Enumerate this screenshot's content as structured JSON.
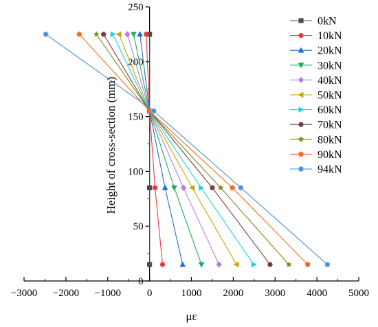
{
  "chart_data": {
    "type": "line",
    "title": "",
    "xlabel": "με",
    "ylabel": "Height of cross-section (mm)",
    "xlim": [
      -3000,
      5000
    ],
    "ylim": [
      0,
      250
    ],
    "xticks": [
      -3000,
      -2000,
      -1000,
      0,
      1000,
      2000,
      3000,
      4000,
      5000
    ],
    "yticks": [
      0,
      50,
      100,
      150,
      200,
      250
    ],
    "xtick_labels": [
      "−3000",
      "−2000",
      "−1000",
      "0",
      "1000",
      "2000",
      "3000",
      "4000",
      "5000"
    ],
    "ytick_labels": [
      "0",
      "50",
      "100",
      "150",
      "200",
      "250"
    ],
    "grid": false,
    "legend_position": "top-right",
    "series": [
      {
        "name": "0kN",
        "color": "#4d4d4d",
        "marker": "square",
        "points": [
          [
            0,
            225
          ],
          [
            0,
            155
          ],
          [
            0,
            85
          ],
          [
            0,
            15
          ]
        ]
      },
      {
        "name": "10kN",
        "color": "#f0353a",
        "marker": "circle",
        "points": [
          [
            -80,
            225
          ],
          [
            0,
            155
          ],
          [
            130,
            85
          ],
          [
            310,
            15
          ]
        ]
      },
      {
        "name": "20kN",
        "color": "#1f6fd1",
        "marker": "triangle-up",
        "points": [
          [
            -230,
            225
          ],
          [
            0,
            155
          ],
          [
            370,
            85
          ],
          [
            790,
            15
          ]
        ]
      },
      {
        "name": "30kN",
        "color": "#1cab62",
        "marker": "triangle-down",
        "points": [
          [
            -380,
            225
          ],
          [
            0,
            155
          ],
          [
            590,
            85
          ],
          [
            1240,
            15
          ]
        ]
      },
      {
        "name": "40kN",
        "color": "#b07ee8",
        "marker": "diamond",
        "points": [
          [
            -530,
            225
          ],
          [
            0,
            155
          ],
          [
            810,
            85
          ],
          [
            1660,
            15
          ]
        ]
      },
      {
        "name": "50kN",
        "color": "#c9a406",
        "marker": "triangle-left",
        "points": [
          [
            -730,
            225
          ],
          [
            0,
            155
          ],
          [
            1020,
            85
          ],
          [
            2080,
            15
          ]
        ]
      },
      {
        "name": "60kN",
        "color": "#17d6e0",
        "marker": "triangle-right",
        "points": [
          [
            -880,
            225
          ],
          [
            0,
            155
          ],
          [
            1230,
            85
          ],
          [
            2490,
            15
          ]
        ]
      },
      {
        "name": "70kN",
        "color": "#7a3d3d",
        "marker": "hexagon",
        "points": [
          [
            -1100,
            225
          ],
          [
            0,
            155
          ],
          [
            1500,
            85
          ],
          [
            2880,
            15
          ]
        ]
      },
      {
        "name": "80kN",
        "color": "#7c8a16",
        "marker": "star",
        "points": [
          [
            -1270,
            225
          ],
          [
            0,
            155
          ],
          [
            1700,
            85
          ],
          [
            3330,
            15
          ]
        ]
      },
      {
        "name": "90kN",
        "color": "#f26d1e",
        "marker": "pentagon",
        "points": [
          [
            -1680,
            225
          ],
          [
            0,
            155
          ],
          [
            1980,
            85
          ],
          [
            3780,
            15
          ]
        ]
      },
      {
        "name": "94kN",
        "color": "#4a8fd6",
        "marker": "sphere",
        "points": [
          [
            -2480,
            225
          ],
          [
            100,
            155
          ],
          [
            2180,
            85
          ],
          [
            4250,
            15
          ]
        ]
      }
    ]
  }
}
